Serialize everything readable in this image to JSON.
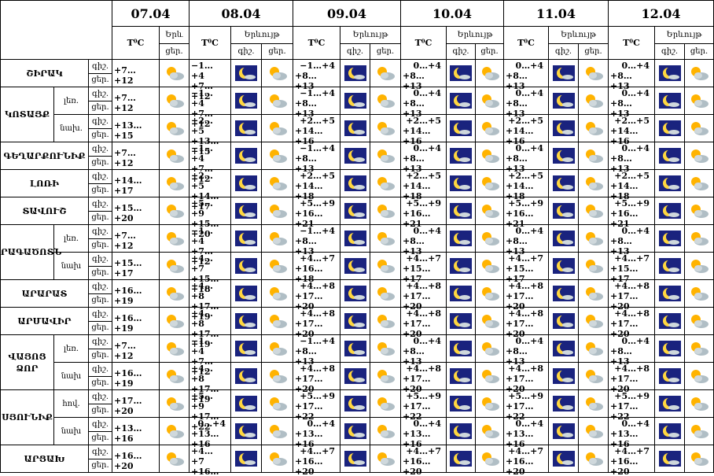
{
  "header": {
    "days": [
      "07.04",
      "08.04",
      "09.04",
      "10.04",
      "11.04",
      "12.04"
    ],
    "temp_label": "T⁰C",
    "phenomenon_first": "Երև",
    "phenomenon": "Երևույթ",
    "night": "գիշ.",
    "day": "ցեր."
  },
  "regions": [
    {
      "name": "ՇԻՐԱԿ",
      "rows": [
        {
          "first_day": "+7…+12",
          "days": [
            [
              "−1…+4",
              "+7…+12"
            ],
            [
              "−1…+4",
              "+8…+13"
            ],
            [
              "0…+4",
              "+8…+13"
            ],
            [
              "0…+4",
              "+8…+13"
            ],
            [
              "0…+4",
              "+8…+13"
            ]
          ]
        }
      ]
    },
    {
      "name": "ԿՈՏԱՅՔ",
      "rows": [
        {
          "sub": "լեռ.",
          "first_day": "+7…+12",
          "days": [
            [
              "−1…+4",
              "+7…+12"
            ],
            [
              "−1…+4",
              "+8…+13"
            ],
            [
              "0…+4",
              "+8…+13"
            ],
            [
              "0…+4",
              "+8…+13"
            ],
            [
              "0…+4",
              "+8…+13"
            ]
          ]
        },
        {
          "sub": "նախ.",
          "first_day": "+13…+15",
          "days": [
            [
              "+2…+5",
              "+13…+15"
            ],
            [
              "+2…+5",
              "+14…+16"
            ],
            [
              "+2…+5",
              "+14…+16"
            ],
            [
              "+2…+5",
              "+14…+16"
            ],
            [
              "+2…+5",
              "+14…+16"
            ]
          ]
        }
      ]
    },
    {
      "name": "ԳԵՂԱՐՔՈՒՆԻՔ",
      "rows": [
        {
          "first_day": "+7…+12",
          "days": [
            [
              "−1…+4",
              "+7…+12"
            ],
            [
              "−1…+4",
              "+8…+13"
            ],
            [
              "0…+4",
              "+8…+13"
            ],
            [
              "0…+4",
              "+8…+13"
            ],
            [
              "0…+4",
              "+8…+13"
            ]
          ]
        }
      ]
    },
    {
      "name": "ԼՈՌԻ",
      "rows": [
        {
          "first_day": "+14…+17",
          "days": [
            [
              "+2…+5",
              "+14…+17"
            ],
            [
              "+2…+5",
              "+14…+18"
            ],
            [
              "+2…+5",
              "+14…+18"
            ],
            [
              "+2…+5",
              "+14…+18"
            ],
            [
              "+2…+5",
              "+14…+18"
            ]
          ]
        }
      ]
    },
    {
      "name": "ՏԱՎՈՒՇ",
      "rows": [
        {
          "first_day": "+15…+20",
          "days": [
            [
              "+5…+9",
              "+15…+20"
            ],
            [
              "+5…+9",
              "+16…+21"
            ],
            [
              "+5…+9",
              "+16…+21"
            ],
            [
              "+5…+9",
              "+16…+21"
            ],
            [
              "+5…+9",
              "+16…+21"
            ]
          ]
        }
      ]
    },
    {
      "name": "ԱՐԱԳԱԾՈՏՆ",
      "rows": [
        {
          "sub": "լեռ.",
          "first_day": "+7…+12",
          "days": [
            [
              "−1…+4",
              "+7…+12"
            ],
            [
              "−1…+4",
              "+8…+13"
            ],
            [
              "0…+4",
              "+8…+13"
            ],
            [
              "0…+4",
              "+8…+13"
            ],
            [
              "0…+4",
              "+8…+13"
            ]
          ]
        },
        {
          "sub": "նախ",
          "first_day": "+15…+17",
          "days": [
            [
              "+4…+7",
              "+15…+18"
            ],
            [
              "+4…+7",
              "+16…+18"
            ],
            [
              "+4…+7",
              "+15…+17"
            ],
            [
              "+4…+7",
              "+15…+17"
            ],
            [
              "+4…+7",
              "+15…+17"
            ]
          ]
        }
      ]
    },
    {
      "name": "ԱՐԱՐԱՏ",
      "rows": [
        {
          "first_day": "+16…+19",
          "days": [
            [
              "+4…+8",
              "+17…+19"
            ],
            [
              "+4…+8",
              "+17…+20"
            ],
            [
              "+4…+8",
              "+17…+20"
            ],
            [
              "+4…+8",
              "+17…+20"
            ],
            [
              "+4…+8",
              "+17…+20"
            ]
          ]
        }
      ]
    },
    {
      "name": "ԱՐՄԱՎԻՐ",
      "rows": [
        {
          "first_day": "+16…+19",
          "days": [
            [
              "+4…+8",
              "+17…+19"
            ],
            [
              "+4…+8",
              "+17…+20"
            ],
            [
              "+4…+8",
              "+17…+20"
            ],
            [
              "+4…+8",
              "+17…+20"
            ],
            [
              "+4…+8",
              "+17…+20"
            ]
          ]
        }
      ]
    },
    {
      "name": "ՎԱՅՈՑ ՁՈՐ",
      "rows": [
        {
          "sub": "լեռ.",
          "first_day": "+7…+12",
          "days": [
            [
              "−1…+4",
              "+7…+12"
            ],
            [
              "−1…+4",
              "+8…+13"
            ],
            [
              "0…+4",
              "+8…+13"
            ],
            [
              "0…+4",
              "+8…+13"
            ],
            [
              "0…+4",
              "+8…+13"
            ]
          ]
        },
        {
          "sub": "նախ",
          "first_day": "+16…+19",
          "days": [
            [
              "+4…+8",
              "+17…+19"
            ],
            [
              "+4…+8",
              "+17…+20"
            ],
            [
              "+4…+8",
              "+17…+20"
            ],
            [
              "+4…+8",
              "+17…+20"
            ],
            [
              "+4…+8",
              "+17…+20"
            ]
          ]
        }
      ]
    },
    {
      "name": "ՍՅՈՒՆԻՔ",
      "rows": [
        {
          "sub": "հով.",
          "first_day": "+17…+20",
          "days": [
            [
              "+5…+9",
              "+17…+22"
            ],
            [
              "+5…+9",
              "+17…+22"
            ],
            [
              "+5…+9",
              "+17…+22"
            ],
            [
              "+5…+9",
              "+17…+22"
            ],
            [
              "+5…+9",
              "+17…+22"
            ]
          ]
        },
        {
          "sub": "նախ",
          "first_day": "+13…+16",
          "days": [
            [
              "0…+4",
              "+13…+16"
            ],
            [
              "0…+4",
              "+13…+16"
            ],
            [
              "0…+4",
              "+13…+16"
            ],
            [
              "0…+4",
              "+13…+16"
            ],
            [
              "0…+4",
              "+13…+16"
            ]
          ]
        }
      ]
    },
    {
      "name": "ԱՐՑԱԽ",
      "rows": [
        {
          "first_day": "+16…+20",
          "days": [
            [
              "+4…+7",
              "+16…+20"
            ],
            [
              "+4…+7",
              "+16…+20"
            ],
            [
              "+4…+7",
              "+16…+20"
            ],
            [
              "+4…+7",
              "+16…+20"
            ],
            [
              "+4…+7",
              "+16…+20"
            ]
          ]
        }
      ]
    }
  ]
}
